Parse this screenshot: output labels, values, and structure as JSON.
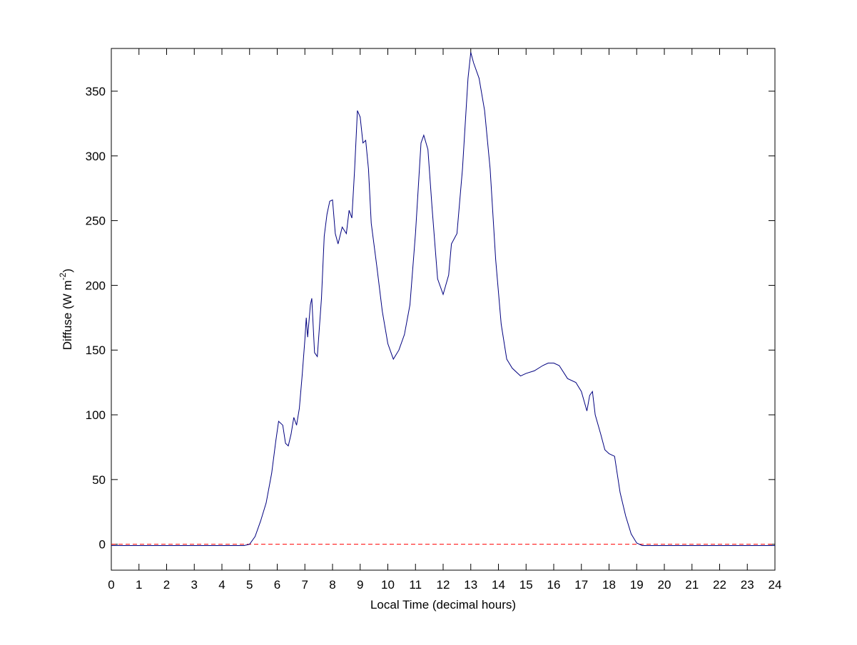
{
  "chart_data": {
    "type": "line",
    "xlabel": "Local Time (decimal hours)",
    "ylabel": [
      "Diffuse (W m",
      "-2",
      ")"
    ],
    "x": [
      0,
      1,
      2,
      3,
      4,
      4.8,
      5,
      5.2,
      5.4,
      5.6,
      5.8,
      5.95,
      6.05,
      6.2,
      6.3,
      6.4,
      6.5,
      6.6,
      6.7,
      6.8,
      6.9,
      7.0,
      7.05,
      7.1,
      7.2,
      7.25,
      7.35,
      7.45,
      7.6,
      7.7,
      7.8,
      7.9,
      8.0,
      8.1,
      8.2,
      8.35,
      8.5,
      8.6,
      8.7,
      8.8,
      8.9,
      9.0,
      9.1,
      9.2,
      9.3,
      9.4,
      9.6,
      9.8,
      10.0,
      10.2,
      10.4,
      10.6,
      10.8,
      11.0,
      11.2,
      11.3,
      11.45,
      11.6,
      11.8,
      12.0,
      12.2,
      12.3,
      12.5,
      12.7,
      12.9,
      13.0,
      13.1,
      13.3,
      13.5,
      13.7,
      13.9,
      14.1,
      14.3,
      14.5,
      14.8,
      15.0,
      15.3,
      15.6,
      15.8,
      16.0,
      16.2,
      16.5,
      16.8,
      17.0,
      17.2,
      17.3,
      17.4,
      17.5,
      17.7,
      17.85,
      18.0,
      18.2,
      18.4,
      18.6,
      18.8,
      19.0,
      19.2,
      20,
      21,
      22,
      23,
      24
    ],
    "series": [
      {
        "color": "#00007f",
        "values": [
          -1,
          -1,
          -1,
          -1,
          -1,
          -1,
          0,
          6,
          18,
          32,
          55,
          80,
          95,
          92,
          78,
          76,
          85,
          98,
          92,
          105,
          130,
          158,
          175,
          160,
          185,
          190,
          148,
          145,
          190,
          238,
          255,
          265,
          266,
          240,
          232,
          245,
          240,
          258,
          252,
          290,
          335,
          330,
          310,
          312,
          290,
          248,
          215,
          180,
          155,
          143,
          150,
          162,
          185,
          240,
          310,
          316,
          305,
          260,
          205,
          193,
          208,
          232,
          240,
          290,
          360,
          380,
          372,
          360,
          335,
          290,
          220,
          170,
          143,
          136,
          130,
          132,
          134,
          138,
          140,
          140,
          138,
          128,
          125,
          118,
          103,
          115,
          118,
          100,
          85,
          73,
          70,
          68,
          40,
          22,
          8,
          1,
          -1,
          -1,
          -1,
          -1,
          -1,
          -1
        ]
      }
    ],
    "hline": {
      "value": 0,
      "color": "#ff0000",
      "style": "dashed"
    },
    "xlim": [
      0,
      24
    ],
    "xticks": [
      0,
      1,
      2,
      3,
      4,
      5,
      6,
      7,
      8,
      9,
      10,
      11,
      12,
      13,
      14,
      15,
      16,
      17,
      18,
      19,
      20,
      21,
      22,
      23,
      24
    ],
    "ylim": [
      -20,
      383
    ],
    "yticks": [
      0,
      50,
      100,
      150,
      200,
      250,
      300,
      350
    ]
  }
}
